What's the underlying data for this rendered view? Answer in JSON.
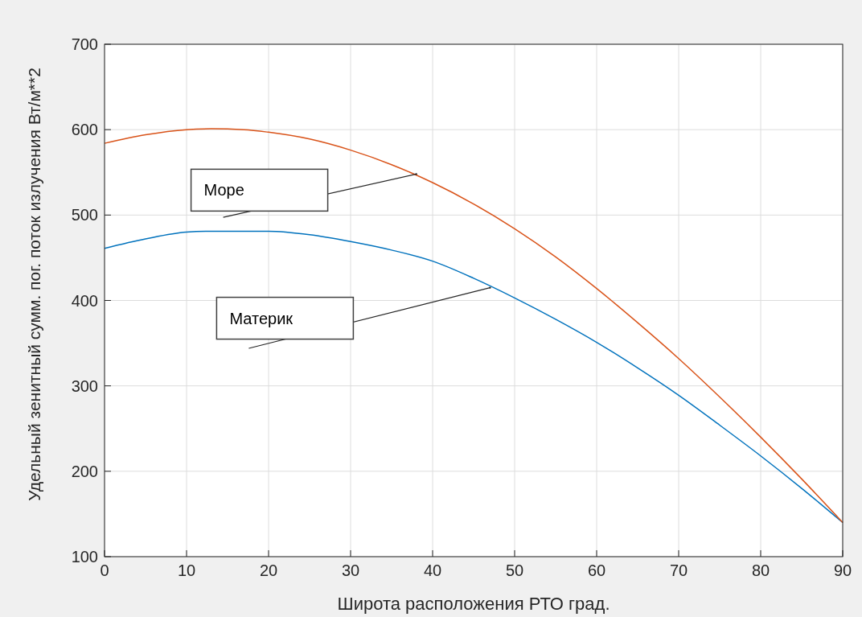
{
  "chart_data": {
    "type": "line",
    "xlabel": "Широта расположения РТО град.",
    "ylabel": "Удельный зенитный сумм. пог. поток излучения Вт/м**2",
    "x": [
      0,
      5,
      10,
      13,
      17,
      20,
      25,
      30,
      35,
      40,
      45,
      50,
      55,
      60,
      65,
      70,
      75,
      80,
      85,
      90
    ],
    "series": [
      {
        "color": "#0072bd",
        "values": [
          461,
          472,
          480,
          481,
          481,
          481,
          477,
          469,
          459,
          446,
          426,
          403,
          378,
          351,
          321,
          289,
          254,
          218,
          180,
          140
        ]
      },
      {
        "color": "#d95319",
        "values": [
          584,
          594,
          600,
          601,
          600,
          597,
          589,
          576,
          559,
          538,
          513,
          484,
          451,
          414,
          374,
          332,
          287,
          240,
          191,
          140
        ]
      }
    ],
    "annotations": [
      {
        "text": "Море",
        "x": 38,
        "y": 548
      },
      {
        "text": "Материк",
        "x": 47,
        "y": 415
      }
    ],
    "xlim": [
      0,
      90
    ],
    "ylim": [
      100,
      700
    ],
    "xticks": [
      0,
      10,
      20,
      30,
      40,
      50,
      60,
      70,
      80,
      90
    ],
    "yticks": [
      100,
      200,
      300,
      400,
      500,
      600,
      700
    ],
    "grid": true,
    "marker": "none",
    "line_style": "solid"
  }
}
